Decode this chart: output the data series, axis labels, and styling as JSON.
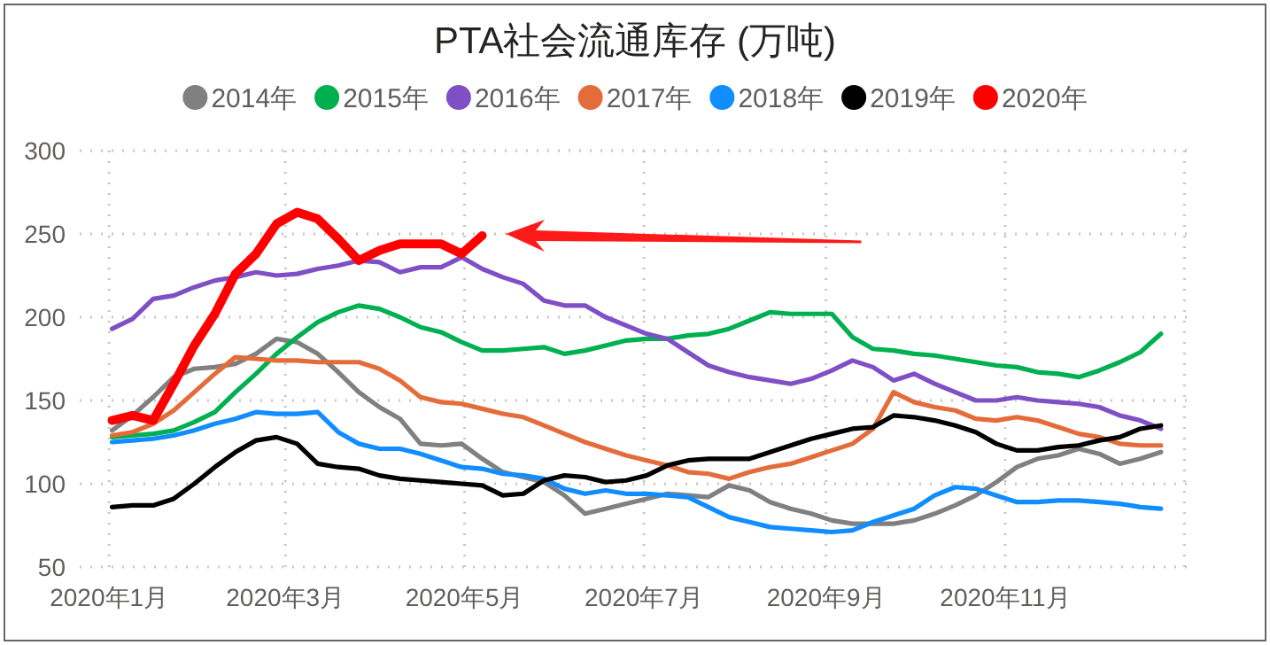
{
  "chart_data": {
    "type": "line",
    "title": "PTA社会流通库存 (万吨)",
    "x": [
      "2020-01-02",
      "2020-01-09",
      "2020-01-16",
      "2020-01-23",
      "2020-01-30",
      "2020-02-06",
      "2020-02-13",
      "2020-02-20",
      "2020-02-27",
      "2020-03-05",
      "2020-03-12",
      "2020-03-19",
      "2020-03-26",
      "2020-04-02",
      "2020-04-09",
      "2020-04-16",
      "2020-04-23",
      "2020-04-30",
      "2020-05-07",
      "2020-05-14",
      "2020-05-21",
      "2020-05-28",
      "2020-06-04",
      "2020-06-11",
      "2020-06-18",
      "2020-06-25",
      "2020-07-02",
      "2020-07-09",
      "2020-07-16",
      "2020-07-23",
      "2020-07-30",
      "2020-08-06",
      "2020-08-13",
      "2020-08-20",
      "2020-08-27",
      "2020-09-03",
      "2020-09-10",
      "2020-09-17",
      "2020-09-24",
      "2020-10-01",
      "2020-10-08",
      "2020-10-15",
      "2020-10-22",
      "2020-10-29",
      "2020-11-05",
      "2020-11-12",
      "2020-11-19",
      "2020-11-26",
      "2020-12-03",
      "2020-12-10",
      "2020-12-17",
      "2020-12-24"
    ],
    "series": [
      {
        "name": "2014年",
        "color": "#808080",
        "values": [
          132,
          141,
          152,
          164,
          169,
          170,
          172,
          178,
          187,
          185,
          178,
          167,
          155,
          146,
          139,
          124,
          123,
          124,
          115,
          107,
          104,
          101,
          93,
          82,
          85,
          88,
          91,
          94,
          93,
          92,
          99,
          96,
          89,
          85,
          82,
          78,
          76,
          76,
          76,
          78,
          82,
          87,
          93,
          101,
          110,
          115,
          117,
          121,
          118,
          112,
          115,
          119
        ]
      },
      {
        "name": "2015年",
        "color": "#00b050",
        "values": [
          128,
          129,
          130,
          132,
          137,
          143,
          155,
          166,
          178,
          188,
          197,
          203,
          207,
          205,
          200,
          194,
          191,
          185,
          180,
          180,
          181,
          182,
          178,
          180,
          183,
          186,
          187,
          187,
          189,
          190,
          193,
          198,
          203,
          202,
          202,
          202,
          188,
          181,
          180,
          178,
          177,
          175,
          173,
          171,
          170,
          167,
          166,
          164,
          168,
          173,
          179,
          190
        ]
      },
      {
        "name": "2016年",
        "color": "#7f4fc6",
        "values": [
          193,
          199,
          211,
          213,
          218,
          222,
          224,
          227,
          225,
          226,
          229,
          231,
          234,
          233,
          227,
          230,
          230,
          236,
          229,
          224,
          220,
          210,
          207,
          207,
          200,
          195,
          190,
          187,
          179,
          171,
          167,
          164,
          162,
          160,
          163,
          168,
          174,
          170,
          162,
          166,
          160,
          155,
          150,
          150,
          152,
          150,
          149,
          148,
          146,
          141,
          138,
          133
        ]
      },
      {
        "name": "2017年",
        "color": "#e46c3a",
        "values": [
          129,
          131,
          136,
          144,
          155,
          166,
          176,
          175,
          174,
          174,
          173,
          173,
          173,
          169,
          162,
          152,
          149,
          148,
          145,
          142,
          140,
          135,
          130,
          125,
          121,
          117,
          114,
          111,
          107,
          106,
          103,
          107,
          110,
          112,
          116,
          120,
          124,
          133,
          155,
          149,
          146,
          144,
          139,
          138,
          140,
          138,
          134,
          130,
          128,
          124,
          123,
          123
        ]
      },
      {
        "name": "2018年",
        "color": "#118dff",
        "values": [
          125,
          126,
          127,
          129,
          132,
          136,
          139,
          143,
          142,
          142,
          143,
          131,
          124,
          121,
          121,
          118,
          114,
          110,
          109,
          106,
          105,
          103,
          97,
          94,
          96,
          94,
          94,
          93,
          92,
          86,
          80,
          77,
          74,
          73,
          72,
          71,
          72,
          77,
          81,
          85,
          93,
          98,
          97,
          93,
          89,
          89,
          90,
          90,
          89,
          88,
          86,
          85
        ]
      },
      {
        "name": "2019年",
        "color": "#000000",
        "values": [
          86,
          87,
          87,
          91,
          100,
          110,
          119,
          126,
          128,
          124,
          112,
          110,
          109,
          105,
          103,
          102,
          101,
          100,
          99,
          93,
          94,
          102,
          105,
          104,
          101,
          102,
          105,
          111,
          114,
          115,
          115,
          115,
          119,
          123,
          127,
          130,
          133,
          134,
          141,
          140,
          138,
          135,
          131,
          124,
          120,
          120,
          122,
          123,
          126,
          128,
          133,
          135
        ]
      },
      {
        "name": "2020年",
        "color": "#ff0000",
        "values": [
          138,
          141,
          138,
          160,
          183,
          202,
          226,
          238,
          256,
          263,
          259,
          247,
          234,
          240,
          244,
          244,
          244,
          238,
          249,
          null,
          null,
          null,
          null,
          null,
          null,
          null,
          null,
          null,
          null,
          null,
          null,
          null,
          null,
          null,
          null,
          null,
          null,
          null,
          null,
          null,
          null,
          null,
          null,
          null,
          null,
          null,
          null,
          null,
          null,
          null,
          null,
          null
        ]
      }
    ],
    "xlim": [
      "2019-12-22",
      "2021-01-03"
    ],
    "xticks": [
      {
        "value": "2020-01-01",
        "label": "2020年1月"
      },
      {
        "value": "2020-03-01",
        "label": "2020年3月"
      },
      {
        "value": "2020-05-01",
        "label": "2020年5月"
      },
      {
        "value": "2020-07-01",
        "label": "2020年7月"
      },
      {
        "value": "2020-09-01",
        "label": "2020年9月"
      },
      {
        "value": "2020-11-01",
        "label": "2020年11月"
      },
      {
        "value": "2021-01-01",
        "label": null
      }
    ],
    "ylim": [
      50,
      300
    ],
    "yticks": [
      50,
      100,
      150,
      200,
      250,
      300
    ],
    "grid": true,
    "legend": "top",
    "marker": "none",
    "line_style": "solid"
  }
}
